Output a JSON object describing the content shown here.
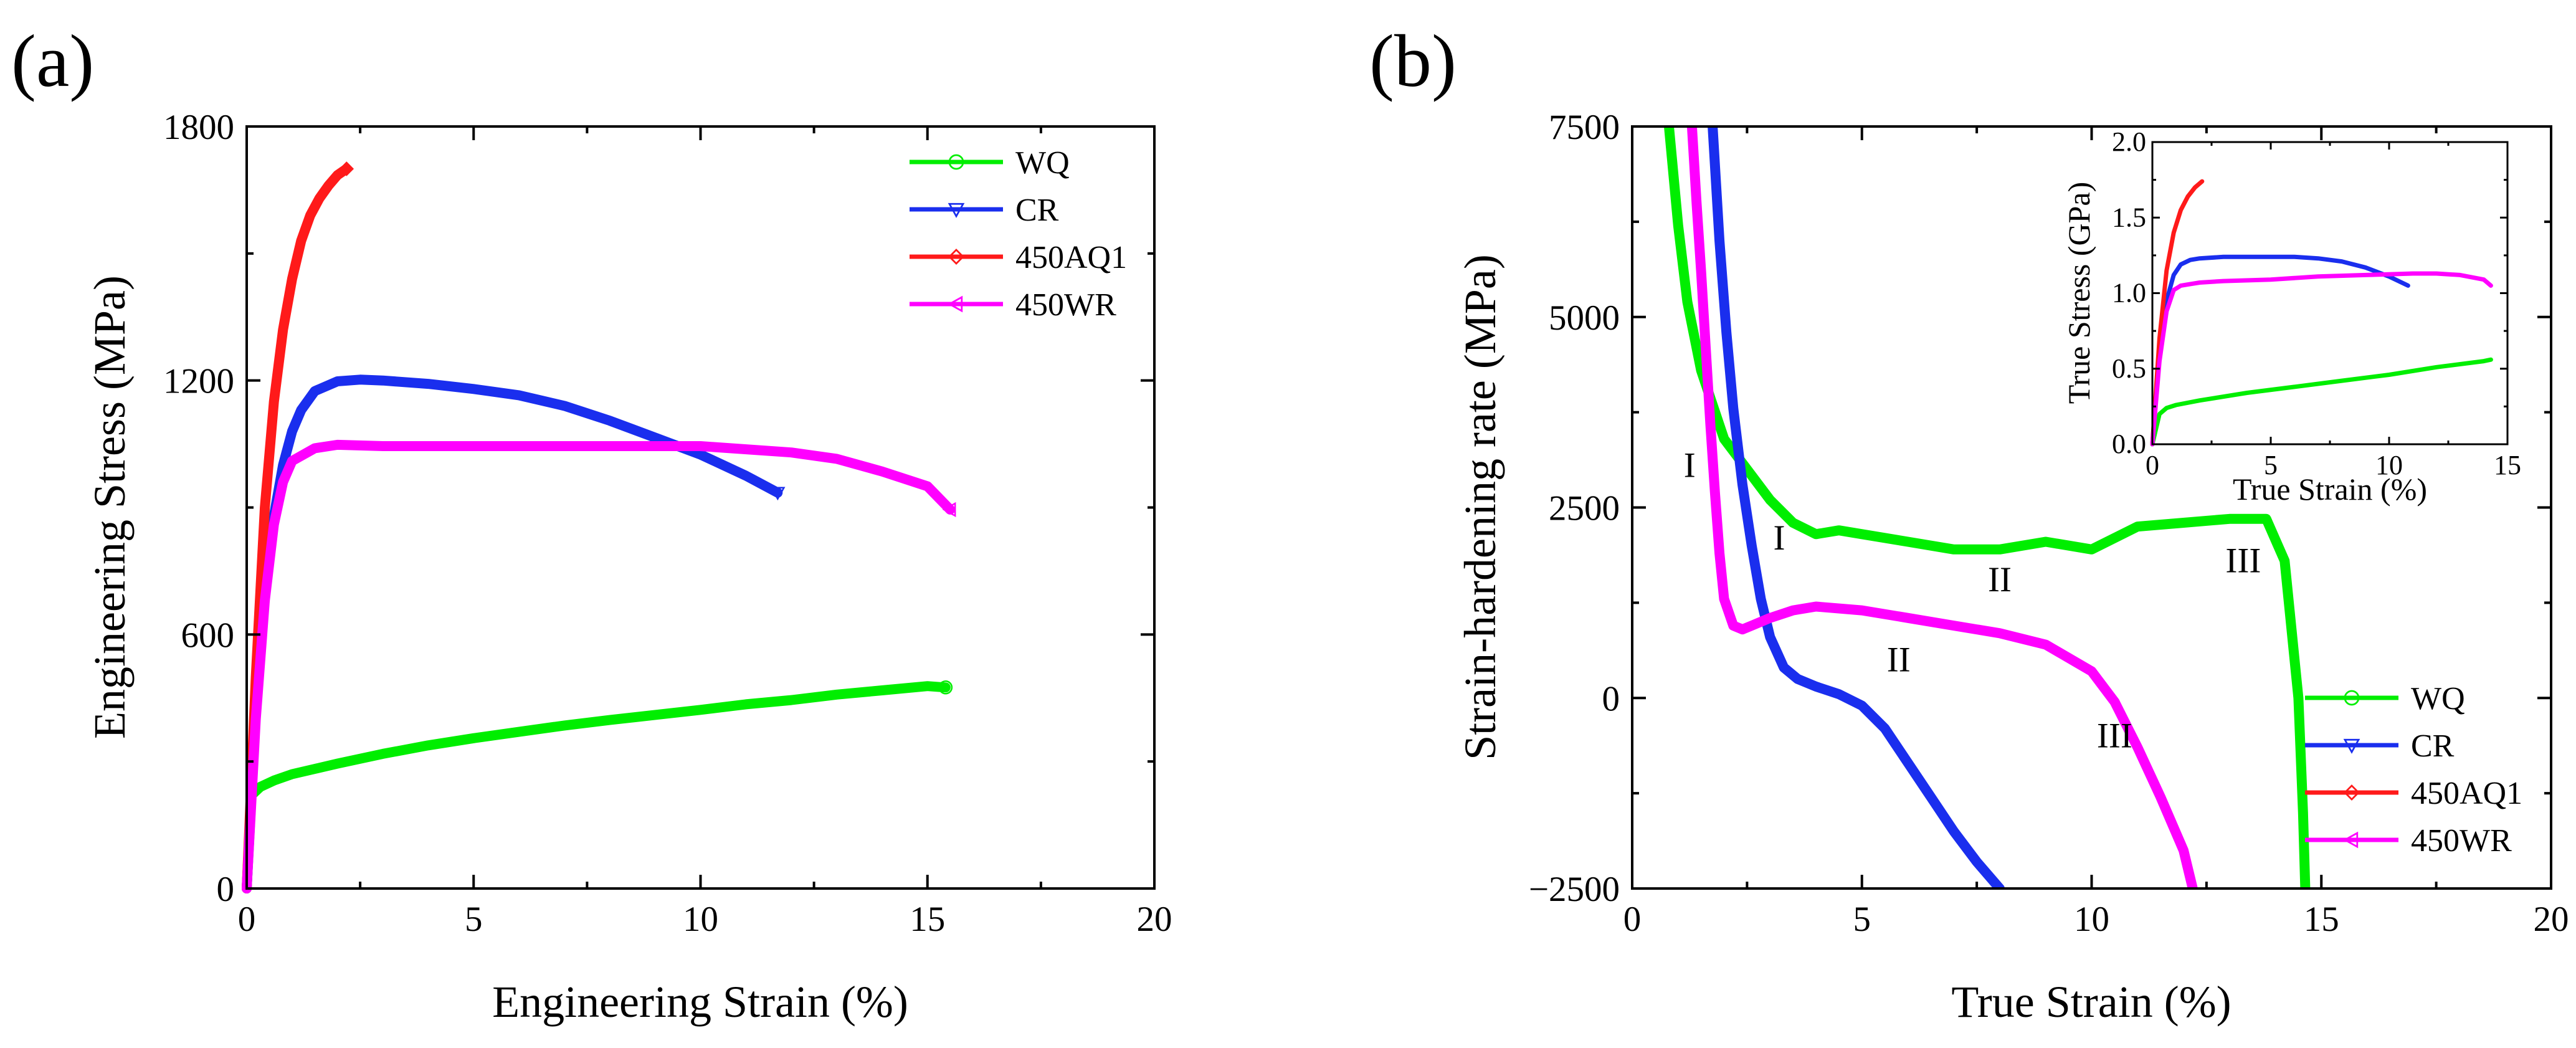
{
  "chart_data": [
    {
      "type": "line",
      "panel_label": "(a)",
      "xlabel": "Engineering Strain (%)",
      "ylabel": "Engineering Stress (MPa)",
      "xlim": [
        0,
        20
      ],
      "ylim": [
        0,
        1800
      ],
      "xticks": [
        0,
        5,
        10,
        15,
        20
      ],
      "yticks": [
        0,
        600,
        1200,
        1800
      ],
      "legend_position": "top-right",
      "series": [
        {
          "name": "WQ",
          "color": "#00ee00",
          "marker": "circle",
          "x": [
            0,
            0.1,
            0.3,
            0.6,
            1,
            2,
            3,
            4,
            5,
            6,
            7,
            8,
            9,
            10,
            11,
            12,
            13,
            14,
            15,
            15.4
          ],
          "y": [
            0,
            220,
            240,
            255,
            270,
            295,
            318,
            338,
            355,
            370,
            385,
            398,
            410,
            422,
            435,
            445,
            458,
            468,
            478,
            475
          ]
        },
        {
          "name": "CR",
          "color": "#1a2eee",
          "marker": "triangle-down",
          "x": [
            0,
            0.2,
            0.4,
            0.6,
            0.8,
            1.0,
            1.2,
            1.5,
            2,
            2.5,
            3,
            4,
            5,
            6,
            7,
            8,
            9,
            10,
            11,
            11.7
          ],
          "y": [
            0,
            420,
            700,
            880,
            1000,
            1080,
            1130,
            1175,
            1198,
            1202,
            1200,
            1192,
            1180,
            1165,
            1140,
            1105,
            1065,
            1025,
            975,
            935
          ]
        },
        {
          "name": "450AQ1",
          "color": "#ff1a1a",
          "marker": "diamond",
          "x": [
            0,
            0.2,
            0.4,
            0.6,
            0.8,
            1.0,
            1.2,
            1.4,
            1.6,
            1.8,
            2.0,
            2.2
          ],
          "y": [
            0,
            500,
            900,
            1150,
            1320,
            1440,
            1530,
            1590,
            1630,
            1660,
            1685,
            1700
          ]
        },
        {
          "name": "450WR",
          "color": "#ff00ff",
          "marker": "triangle-left",
          "x": [
            0,
            0.2,
            0.4,
            0.6,
            0.8,
            1.0,
            1.5,
            2,
            3,
            4,
            6,
            8,
            10,
            12,
            13,
            14,
            15,
            15.5
          ],
          "y": [
            0,
            400,
            680,
            860,
            960,
            1010,
            1040,
            1048,
            1045,
            1045,
            1045,
            1045,
            1045,
            1030,
            1015,
            985,
            950,
            895
          ]
        }
      ]
    },
    {
      "type": "line",
      "panel_label": "(b)",
      "xlabel": "True Strain (%)",
      "ylabel": "Strain-hardening rate (MPa)",
      "xlim": [
        0,
        20
      ],
      "ylim": [
        -2500,
        7500
      ],
      "xticks": [
        0,
        5,
        10,
        15,
        20
      ],
      "yticks": [
        -2500,
        0,
        2500,
        5000,
        7500
      ],
      "ytick_labels": [
        "−2500",
        "0",
        "2500",
        "5000",
        "7500"
      ],
      "legend_position": "bottom-right",
      "annotations": [
        {
          "text": "I",
          "x": 1.25,
          "y": 2900
        },
        {
          "text": "I",
          "x": 3.2,
          "y": 1950
        },
        {
          "text": "II",
          "x": 8.0,
          "y": 1400
        },
        {
          "text": "III",
          "x": 13.3,
          "y": 1650
        },
        {
          "text": "II",
          "x": 5.8,
          "y": 350
        },
        {
          "text": "III",
          "x": 10.5,
          "y": -650
        }
      ],
      "series": [
        {
          "name": "WQ",
          "color": "#00ee00",
          "marker": "circle",
          "x": [
            0.8,
            1.0,
            1.2,
            1.5,
            2.0,
            2.5,
            3.0,
            3.5,
            4.0,
            4.5,
            5.0,
            6.0,
            7.0,
            8.0,
            9.0,
            10.0,
            11.0,
            12.0,
            13.0,
            13.8,
            14.2,
            14.5,
            14.6,
            14.65
          ],
          "y": [
            7500,
            6200,
            5200,
            4300,
            3400,
            3000,
            2600,
            2300,
            2150,
            2200,
            2150,
            2050,
            1950,
            1950,
            2050,
            1950,
            2250,
            2300,
            2350,
            2350,
            1800,
            0,
            -1500,
            -2500
          ]
        },
        {
          "name": "CR",
          "color": "#1a2eee",
          "marker": "triangle-down",
          "x": [
            1.75,
            1.9,
            2.05,
            2.2,
            2.4,
            2.6,
            2.8,
            3.0,
            3.3,
            3.6,
            4.0,
            4.5,
            5.0,
            5.5,
            6.0,
            6.5,
            7.0,
            7.5,
            8.0
          ],
          "y": [
            7500,
            6000,
            4800,
            3800,
            2800,
            2000,
            1300,
            800,
            400,
            250,
            150,
            50,
            -100,
            -400,
            -850,
            -1300,
            -1750,
            -2150,
            -2500
          ]
        },
        {
          "name": "450AQ1",
          "color": "#ff1a1a",
          "marker": "diamond",
          "x": [],
          "y": []
        },
        {
          "name": "450WR",
          "color": "#ff00ff",
          "marker": "triangle-left",
          "x": [
            1.3,
            1.4,
            1.5,
            1.6,
            1.7,
            1.8,
            1.9,
            2.0,
            2.2,
            2.4,
            2.6,
            3.0,
            3.5,
            4.0,
            5.0,
            6.0,
            7.0,
            8.0,
            9.0,
            10.0,
            10.5,
            11.0,
            11.5,
            12.0,
            12.2
          ],
          "y": [
            7500,
            6500,
            5600,
            4600,
            3600,
            2700,
            1900,
            1300,
            950,
            900,
            950,
            1050,
            1150,
            1200,
            1150,
            1050,
            950,
            850,
            700,
            350,
            -50,
            -650,
            -1300,
            -2000,
            -2500
          ]
        }
      ]
    },
    {
      "type": "line",
      "role": "inset",
      "xlabel": "True Strain (%)",
      "ylabel": "True Stress (GPa)",
      "xlim": [
        0,
        15
      ],
      "ylim": [
        0,
        2.0
      ],
      "xticks": [
        0,
        5,
        10,
        15
      ],
      "yticks": [
        0,
        0.5,
        1.0,
        1.5,
        2.0
      ],
      "ytick_labels": [
        "0.0",
        "0.5",
        "1.0",
        "1.5",
        "2.0"
      ],
      "series": [
        {
          "color": "#00ee00",
          "x": [
            0,
            0.3,
            0.6,
            1,
            2,
            4,
            6,
            8,
            10,
            12,
            14,
            14.3
          ],
          "y": [
            0,
            0.2,
            0.24,
            0.26,
            0.29,
            0.34,
            0.38,
            0.42,
            0.46,
            0.51,
            0.55,
            0.56
          ]
        },
        {
          "color": "#1a2eee",
          "x": [
            0,
            0.3,
            0.6,
            0.9,
            1.2,
            1.6,
            2,
            3,
            5,
            6,
            7,
            8,
            9,
            10,
            10.8
          ],
          "y": [
            0,
            0.6,
            0.95,
            1.12,
            1.19,
            1.22,
            1.23,
            1.24,
            1.24,
            1.24,
            1.23,
            1.21,
            1.17,
            1.11,
            1.05
          ]
        },
        {
          "color": "#ff1a1a",
          "x": [
            0,
            0.3,
            0.6,
            0.9,
            1.2,
            1.5,
            1.8,
            2.1
          ],
          "y": [
            0,
            0.7,
            1.15,
            1.4,
            1.55,
            1.64,
            1.7,
            1.74
          ]
        },
        {
          "color": "#ff00ff",
          "x": [
            0,
            0.3,
            0.6,
            0.9,
            1.2,
            1.6,
            2,
            3,
            5,
            7,
            9,
            11,
            12,
            13,
            14,
            14.3
          ],
          "y": [
            0,
            0.55,
            0.88,
            1.02,
            1.05,
            1.06,
            1.07,
            1.08,
            1.09,
            1.11,
            1.12,
            1.13,
            1.13,
            1.12,
            1.09,
            1.05
          ]
        }
      ]
    }
  ]
}
